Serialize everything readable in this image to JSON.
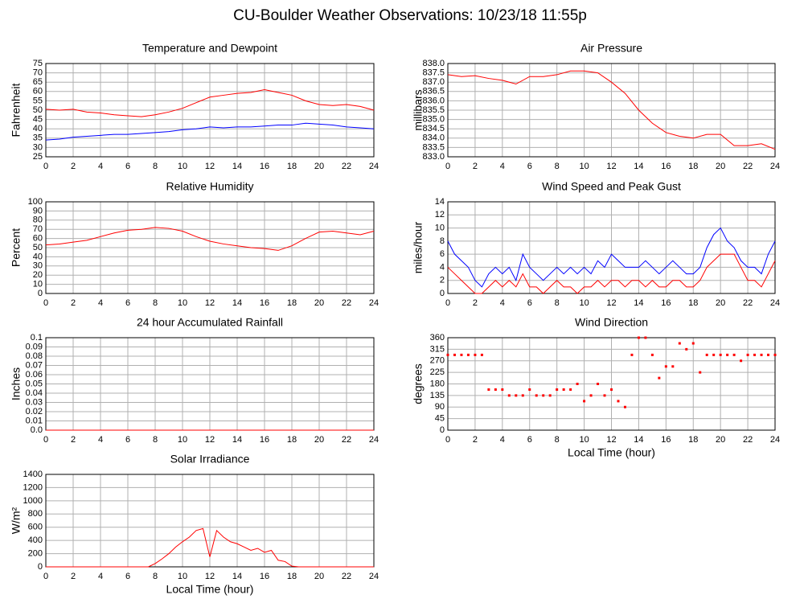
{
  "title": "CU-Boulder Weather Observations: 10/23/18 11:55p",
  "chart_data": [
    {
      "type": "line",
      "title": "Temperature and Dewpoint",
      "ylabel": "Fahrenheit",
      "x": [
        0,
        1,
        2,
        3,
        4,
        5,
        6,
        7,
        8,
        9,
        10,
        11,
        12,
        13,
        14,
        15,
        16,
        17,
        18,
        19,
        20,
        21,
        22,
        23,
        24
      ],
      "series": [
        {
          "color": "#ff0000",
          "values": [
            50.5,
            50,
            50.5,
            49,
            48.5,
            47.5,
            47,
            46.5,
            47.5,
            49,
            51,
            54,
            57,
            58,
            59,
            59.5,
            61,
            59.5,
            58,
            55,
            53,
            52.5,
            53,
            52,
            50
          ]
        },
        {
          "color": "#0000ff",
          "values": [
            34,
            34.5,
            35.5,
            36,
            36.5,
            37,
            37,
            37.5,
            38,
            38.5,
            39.5,
            40,
            41,
            40.5,
            41,
            41,
            41.5,
            42,
            42,
            43,
            42.5,
            42,
            41,
            40.5,
            40
          ]
        }
      ],
      "xlim": [
        0,
        24
      ],
      "xticks": [
        0,
        2,
        4,
        6,
        8,
        10,
        12,
        14,
        16,
        18,
        20,
        22,
        24
      ],
      "ylim": [
        25,
        75
      ],
      "yticks": [
        25,
        30,
        35,
        40,
        45,
        50,
        55,
        60,
        65,
        70,
        75
      ],
      "grid": true
    },
    {
      "type": "line",
      "title": "Air Pressure",
      "ylabel": "millibars",
      "x": [
        0,
        1,
        2,
        3,
        4,
        5,
        6,
        7,
        8,
        9,
        10,
        11,
        12,
        13,
        14,
        15,
        16,
        17,
        18,
        19,
        20,
        21,
        22,
        23,
        24
      ],
      "series": [
        {
          "color": "#ff0000",
          "values": [
            837.4,
            837.3,
            837.35,
            837.2,
            837.1,
            836.9,
            837.3,
            837.3,
            837.4,
            837.6,
            837.6,
            837.5,
            837.0,
            836.4,
            835.5,
            834.8,
            834.3,
            834.1,
            834.0,
            834.2,
            834.2,
            833.6,
            833.6,
            833.7,
            833.4
          ]
        }
      ],
      "xlim": [
        0,
        24
      ],
      "xticks": [
        0,
        2,
        4,
        6,
        8,
        10,
        12,
        14,
        16,
        18,
        20,
        22,
        24
      ],
      "ylim": [
        833,
        838
      ],
      "yticks": [
        {
          "value": 833,
          "label": "833.0"
        },
        833.5,
        {
          "value": 834,
          "label": "834.0"
        },
        834.5,
        {
          "value": 835,
          "label": "835.0"
        },
        835.5,
        {
          "value": 836,
          "label": "836.0"
        },
        836.5,
        {
          "value": 837,
          "label": "837.0"
        },
        837.5,
        {
          "value": 838,
          "label": "838.0"
        }
      ],
      "grid": true
    },
    {
      "type": "line",
      "title": "Relative Humidity",
      "ylabel": "Percent",
      "x": [
        0,
        1,
        2,
        3,
        4,
        5,
        6,
        7,
        8,
        9,
        10,
        11,
        12,
        13,
        14,
        15,
        16,
        17,
        18,
        19,
        20,
        21,
        22,
        23,
        24
      ],
      "series": [
        {
          "color": "#ff0000",
          "values": [
            53,
            54,
            56,
            58,
            62,
            66,
            69,
            70,
            72,
            71,
            68,
            62,
            57,
            54,
            52,
            50,
            49,
            47,
            52,
            60,
            67,
            68,
            66,
            64,
            68
          ]
        }
      ],
      "xlim": [
        0,
        24
      ],
      "xticks": [
        0,
        2,
        4,
        6,
        8,
        10,
        12,
        14,
        16,
        18,
        20,
        22,
        24
      ],
      "ylim": [
        0,
        100
      ],
      "yticks": [
        0,
        10,
        20,
        30,
        40,
        50,
        60,
        70,
        80,
        90,
        100
      ],
      "grid": true
    },
    {
      "type": "line",
      "title": "Wind Speed and Peak Gust",
      "ylabel": "miles/hour",
      "x": [
        0,
        0.5,
        1,
        1.5,
        2,
        2.5,
        3,
        3.5,
        4,
        4.5,
        5,
        5.5,
        6,
        6.5,
        7,
        7.5,
        8,
        8.5,
        9,
        9.5,
        10,
        10.5,
        11,
        11.5,
        12,
        12.5,
        13,
        13.5,
        14,
        14.5,
        15,
        15.5,
        16,
        16.5,
        17,
        17.5,
        18,
        18.5,
        19,
        19.5,
        20,
        20.5,
        21,
        21.5,
        22,
        22.5,
        23,
        23.5,
        24
      ],
      "series": [
        {
          "color": "#0000ff",
          "values": [
            8,
            6,
            5,
            4,
            2,
            1,
            3,
            4,
            3,
            4,
            2,
            6,
            4,
            3,
            2,
            3,
            4,
            3,
            4,
            3,
            4,
            3,
            5,
            4,
            6,
            5,
            4,
            4,
            4,
            5,
            4,
            3,
            4,
            5,
            4,
            3,
            3,
            4,
            7,
            9,
            10,
            8,
            7,
            5,
            4,
            4,
            3,
            6,
            8
          ]
        },
        {
          "color": "#ff0000",
          "values": [
            4,
            3,
            2,
            1,
            0,
            0,
            1,
            2,
            1,
            2,
            1,
            3,
            1,
            1,
            0,
            1,
            2,
            1,
            1,
            0,
            1,
            1,
            2,
            1,
            2,
            2,
            1,
            2,
            2,
            1,
            2,
            1,
            1,
            2,
            2,
            1,
            1,
            2,
            4,
            5,
            6,
            6,
            6,
            4,
            2,
            2,
            1,
            3,
            5
          ]
        }
      ],
      "xlim": [
        0,
        24
      ],
      "xticks": [
        0,
        2,
        4,
        6,
        8,
        10,
        12,
        14,
        16,
        18,
        20,
        22,
        24
      ],
      "ylim": [
        0,
        14
      ],
      "yticks": [
        0,
        2,
        4,
        6,
        8,
        10,
        12,
        14
      ],
      "grid": true
    },
    {
      "type": "line",
      "title": "24 hour Accumulated Rainfall",
      "ylabel": "Inches",
      "x": [
        0,
        24
      ],
      "series": [
        {
          "color": "#ff0000",
          "values": [
            0,
            0
          ]
        }
      ],
      "xlim": [
        0,
        24
      ],
      "xticks": [
        0,
        2,
        4,
        6,
        8,
        10,
        12,
        14,
        16,
        18,
        20,
        22,
        24
      ],
      "ylim": [
        0,
        0.1
      ],
      "yticks": [
        {
          "value": 0,
          "label": "0.0"
        },
        0.01,
        0.02,
        0.03,
        0.04,
        0.05,
        0.06,
        0.07,
        0.08,
        0.09,
        0.1
      ],
      "grid": true
    },
    {
      "type": "scatter",
      "title": "Wind Direction",
      "ylabel": "degrees",
      "xlabel": "Local Time (hour)",
      "x": [
        0,
        0.5,
        1,
        1.5,
        2,
        2.5,
        3,
        3.5,
        4,
        4.5,
        5,
        5.5,
        6,
        6.5,
        7,
        7.5,
        8,
        8.5,
        9,
        9.5,
        10,
        10.5,
        11,
        11.5,
        12,
        12.5,
        13,
        13.5,
        14,
        14.5,
        15,
        15.5,
        16,
        16.5,
        17,
        17.5,
        18,
        18.5,
        19,
        19.5,
        20,
        20.5,
        21,
        21.5,
        22,
        22.5,
        23,
        23.5,
        24
      ],
      "series": [
        {
          "color": "#ff0000",
          "values": [
            293,
            293,
            293,
            293,
            293,
            293,
            158,
            158,
            158,
            135,
            135,
            135,
            158,
            135,
            135,
            135,
            158,
            158,
            158,
            180,
            113,
            135,
            180,
            135,
            158,
            113,
            90,
            293,
            360,
            360,
            293,
            203,
            248,
            248,
            338,
            315,
            338,
            225,
            293,
            293,
            293,
            293,
            293,
            270,
            293,
            293,
            293,
            293,
            293
          ]
        }
      ],
      "xlim": [
        0,
        24
      ],
      "xticks": [
        0,
        2,
        4,
        6,
        8,
        10,
        12,
        14,
        16,
        18,
        20,
        22,
        24
      ],
      "ylim": [
        0,
        360
      ],
      "yticks": [
        0,
        45,
        90,
        135,
        180,
        225,
        270,
        315,
        360
      ],
      "grid": true
    },
    {
      "type": "line",
      "title": "Solar Irradiance",
      "ylabel": "W/m²",
      "xlabel": "Local Time (hour)",
      "x": [
        0,
        0.5,
        1,
        1.5,
        2,
        2.5,
        3,
        3.5,
        4,
        4.5,
        5,
        5.5,
        6,
        6.5,
        7,
        7.5,
        8,
        8.5,
        9,
        9.5,
        10,
        10.5,
        11,
        11.5,
        12,
        12.5,
        13,
        13.5,
        14,
        14.5,
        15,
        15.5,
        16,
        16.5,
        17,
        17.5,
        18,
        18.5,
        19,
        19.5,
        20,
        20.5,
        21,
        21.5,
        22,
        22.5,
        23,
        23.5,
        24
      ],
      "series": [
        {
          "color": "#ff0000",
          "values": [
            0,
            0,
            0,
            0,
            0,
            0,
            0,
            0,
            0,
            0,
            0,
            0,
            0,
            0,
            0,
            0,
            50,
            120,
            200,
            300,
            380,
            450,
            550,
            580,
            150,
            550,
            450,
            380,
            350,
            300,
            250,
            280,
            220,
            250,
            100,
            80,
            10,
            0,
            0,
            0,
            0,
            0,
            0,
            0,
            0,
            0,
            0,
            0,
            0
          ]
        }
      ],
      "xlim": [
        0,
        24
      ],
      "xticks": [
        0,
        2,
        4,
        6,
        8,
        10,
        12,
        14,
        16,
        18,
        20,
        22,
        24
      ],
      "ylim": [
        0,
        1400
      ],
      "yticks": [
        0,
        200,
        400,
        600,
        800,
        1000,
        1200,
        1400
      ],
      "grid": true
    }
  ]
}
